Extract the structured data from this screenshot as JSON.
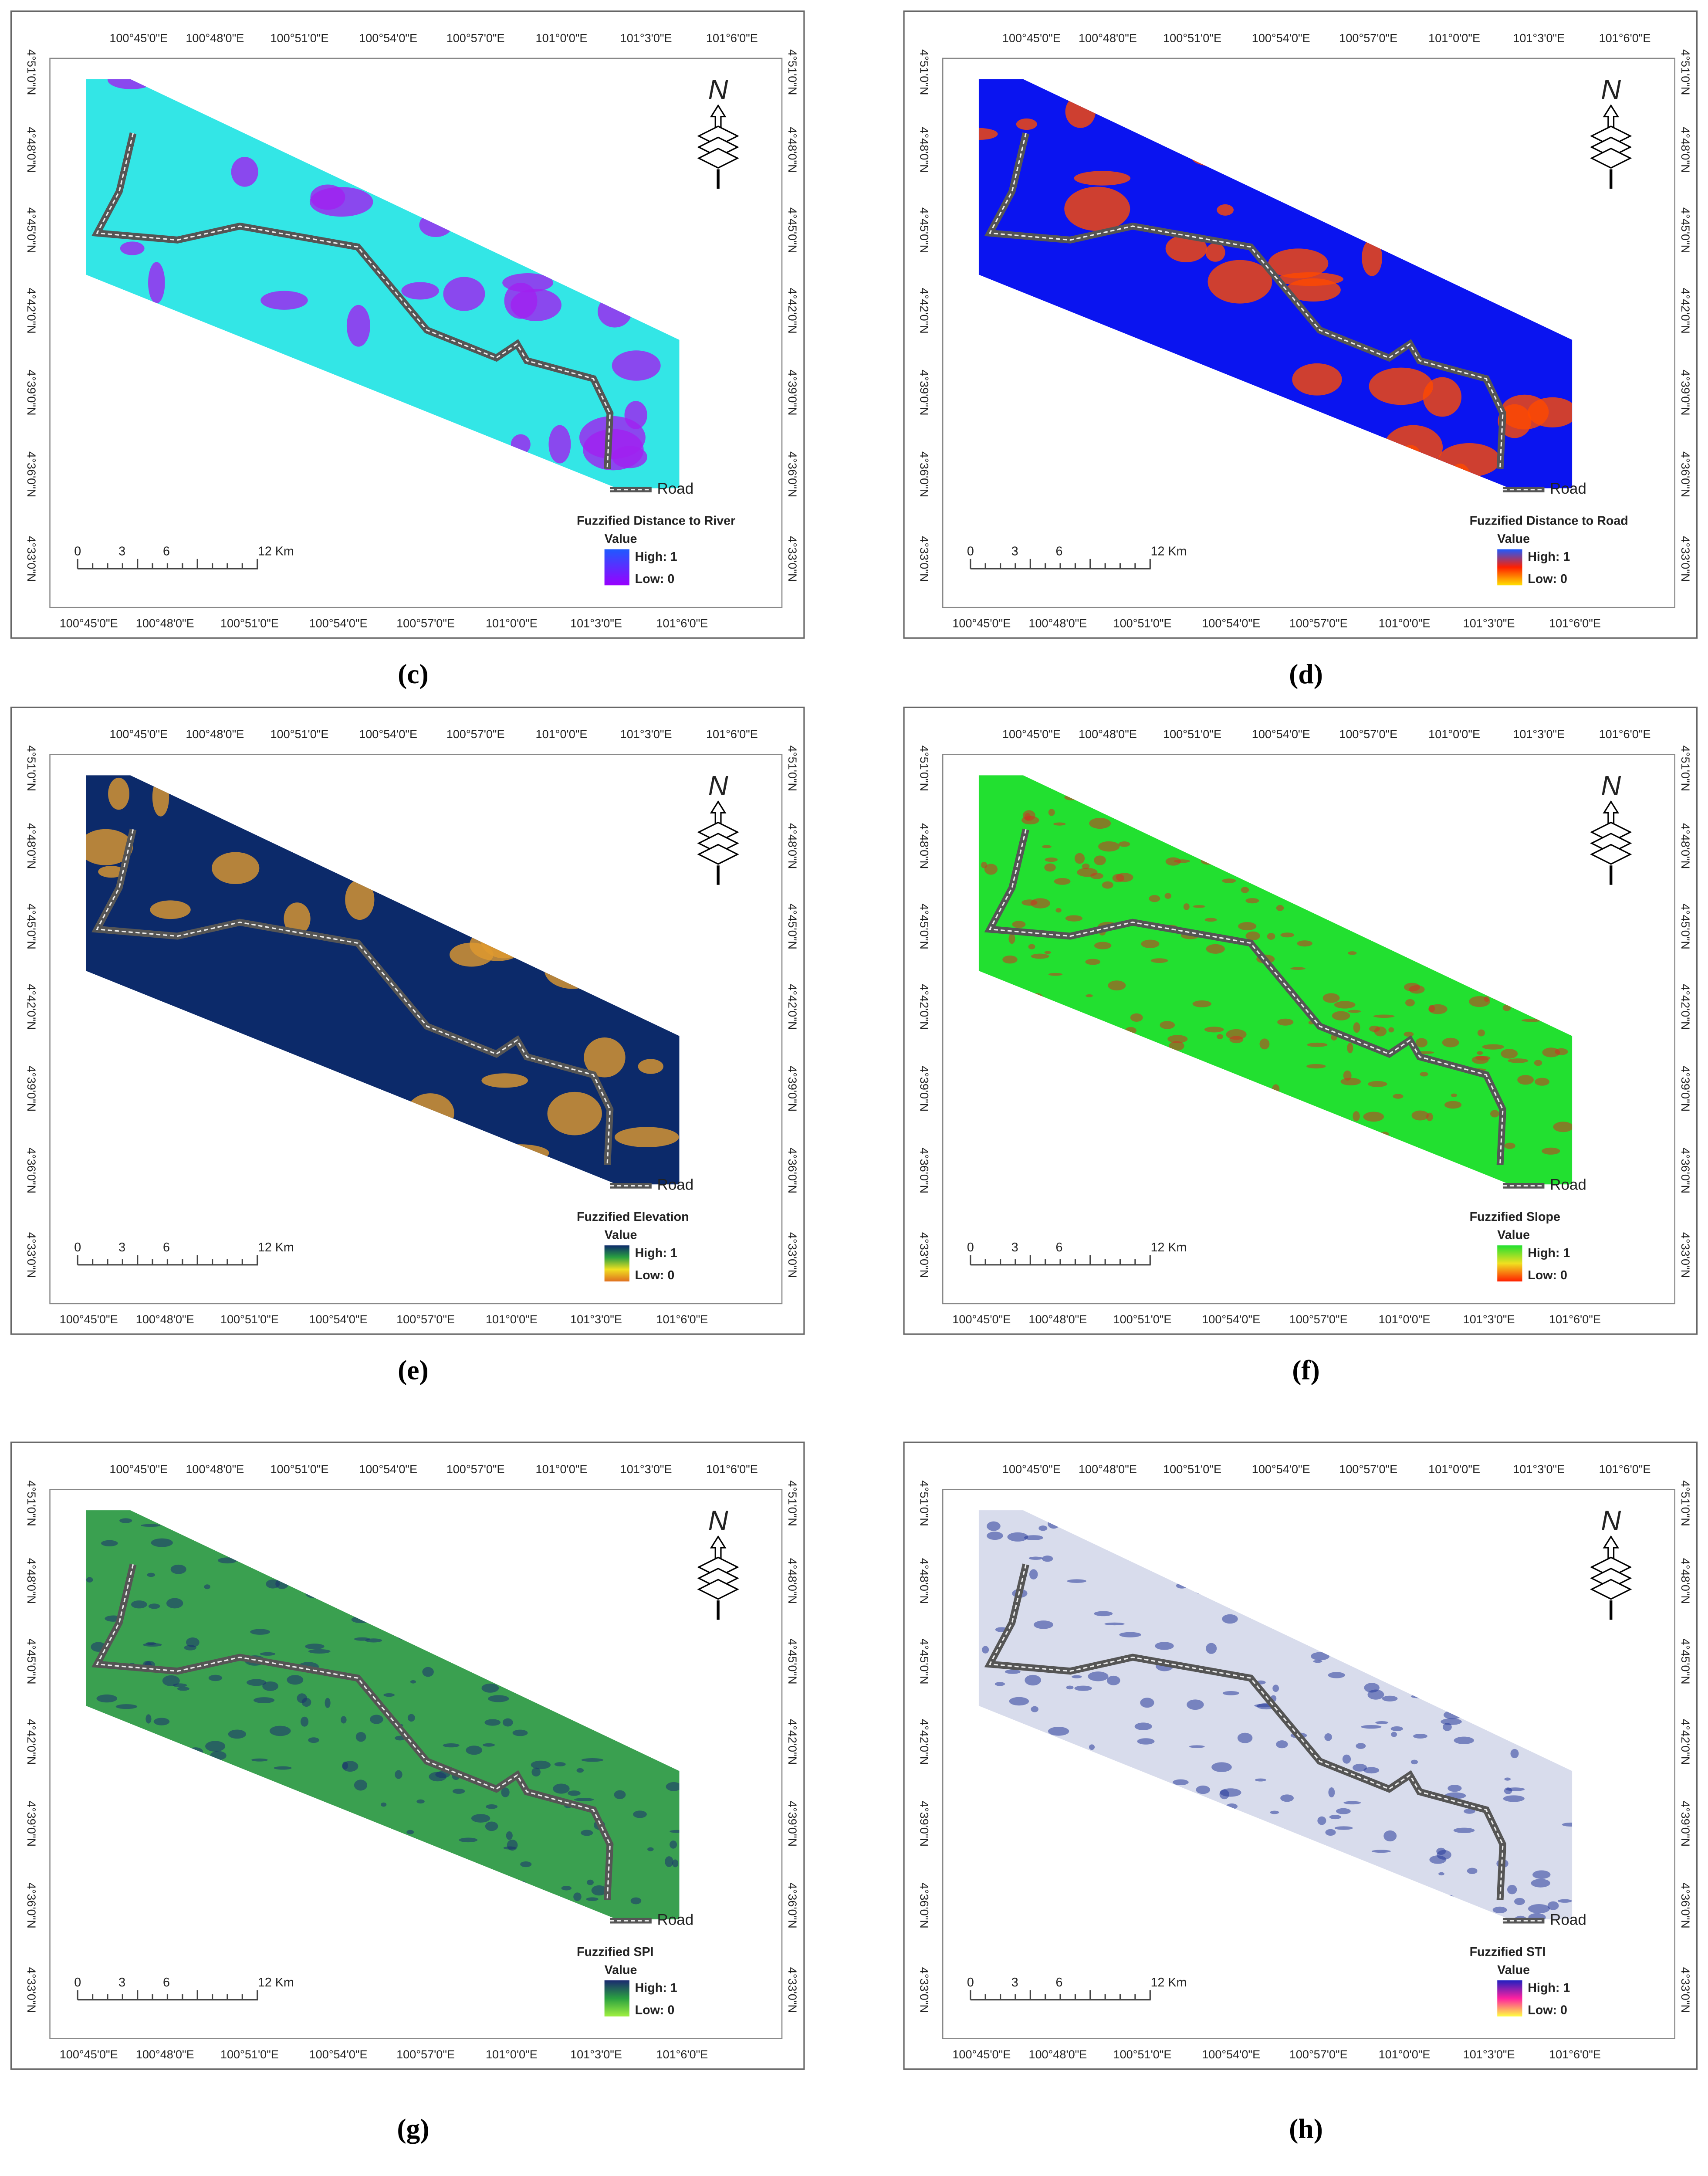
{
  "lon_labels": [
    "100°45'0\"E",
    "100°48'0\"E",
    "100°51'0\"E",
    "100°54'0\"E",
    "100°57'0\"E",
    "101°0'0\"E",
    "101°3'0\"E",
    "101°6'0\"E"
  ],
  "lat_labels": [
    "4°51'0\"N",
    "4°48'0\"N",
    "4°45'0\"N",
    "4°42'0\"N",
    "4°39'0\"N",
    "4°36'0\"N",
    "4°33'0\"N"
  ],
  "scale_bar": [
    "0",
    "3",
    "6",
    "12 Km"
  ],
  "north": "N",
  "road_label": "Road",
  "value_label": "Value",
  "panels": [
    {
      "label": "(c)",
      "legend_title": "Fuzzified Distance to River",
      "high": "High: 1",
      "low": "Low: 0"
    },
    {
      "label": "(d)",
      "legend_title": "Fuzzified Distance to Road",
      "high": "High: 1",
      "low": "Low: 0"
    },
    {
      "label": "(e)",
      "legend_title": "Fuzzified Elevation",
      "high": "High: 1",
      "low": "Low: 0"
    },
    {
      "label": "(f)",
      "legend_title": "Fuzzified Slope",
      "high": "High: 1",
      "low": "Low: 0"
    },
    {
      "label": "(g)",
      "legend_title": "Fuzzified SPI",
      "high": "High: 1",
      "low": "Low: 0"
    },
    {
      "label": "(h)",
      "legend_title": "Fuzzified STI",
      "high": "High: 1",
      "low": "Low: 0"
    }
  ]
}
